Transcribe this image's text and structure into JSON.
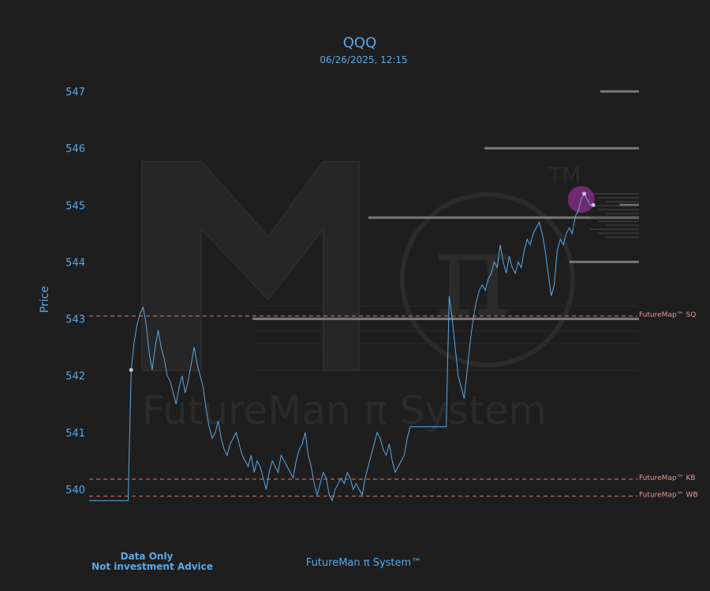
{
  "chart_data": {
    "type": "line",
    "title": "QQQ",
    "subtitle": "06/26/2025, 12:15",
    "ylabel": "Price",
    "xlabel": "",
    "ylim": [
      539.6,
      547.5
    ],
    "yticks": [
      540,
      541,
      542,
      543,
      544,
      545,
      546,
      547
    ],
    "grid": false,
    "legend": "none",
    "colors": {
      "background": "#1e1e1e",
      "price": "#5aa9e6",
      "levels": "#e07a6e",
      "bars": "#7a7a7a",
      "highlight": "#8e2f8e",
      "marker": "#c9c2e6"
    },
    "series": [
      {
        "values": [
          539.8,
          539.8,
          539.8,
          539.8,
          539.8,
          539.8,
          539.8,
          539.8,
          539.8,
          539.8,
          539.8,
          539.8,
          539.8,
          539.8,
          542.1,
          542.6,
          542.9,
          543.1,
          543.2,
          542.9,
          542.4,
          542.1,
          542.5,
          542.8,
          542.5,
          542.3,
          542.0,
          541.9,
          541.7,
          541.5,
          541.8,
          542.0,
          541.7,
          541.9,
          542.2,
          542.5,
          542.2,
          542.0,
          541.8,
          541.4,
          541.1,
          540.9,
          541.0,
          541.2,
          540.9,
          540.7,
          540.6,
          540.8,
          540.9,
          541.0,
          540.8,
          540.6,
          540.5,
          540.4,
          540.6,
          540.3,
          540.5,
          540.4,
          540.2,
          540.0,
          540.3,
          540.5,
          540.4,
          540.3,
          540.6,
          540.5,
          540.4,
          540.3,
          540.2,
          540.5,
          540.7,
          540.8,
          541.0,
          540.6,
          540.4,
          540.1,
          539.9,
          540.1,
          540.3,
          540.2,
          539.9,
          539.8,
          540.0,
          540.1,
          540.2,
          540.1,
          540.3,
          540.2,
          540.0,
          540.1,
          540.0,
          539.9,
          540.2,
          540.4,
          540.6,
          540.8,
          541.0,
          540.9,
          540.7,
          540.6,
          540.8,
          540.5,
          540.3,
          540.4,
          540.5,
          540.6,
          540.9,
          541.1,
          541.1,
          541.1,
          541.1,
          541.1,
          541.1,
          541.1,
          541.1,
          541.1,
          541.1,
          541.1,
          541.1,
          541.1,
          543.4,
          543.0,
          542.5,
          542.0,
          541.8,
          541.6,
          542.1,
          542.6,
          543.0,
          543.3,
          543.5,
          543.6,
          543.5,
          543.7,
          543.8,
          544.0,
          543.9,
          544.3,
          544.0,
          543.8,
          544.1,
          543.9,
          543.8,
          544.0,
          543.9,
          544.2,
          544.4,
          544.3,
          544.5,
          544.6,
          544.7,
          544.5,
          544.2,
          543.8,
          543.4,
          543.6,
          544.2,
          544.4,
          544.3,
          544.5,
          544.6,
          544.5,
          544.8,
          544.9,
          545.1,
          545.2,
          545.1,
          545.0,
          545.0
        ]
      }
    ],
    "levels": [
      {
        "name": "FutureMap™ SQ",
        "value": 543.05
      },
      {
        "name": "FutureMap™ KB",
        "value": 540.18
      },
      {
        "name": "FutureMap™ WB",
        "value": 539.88
      }
    ],
    "volume_profile": [
      {
        "price": 547.0,
        "weight": 0.1
      },
      {
        "price": 546.0,
        "weight": 0.4
      },
      {
        "price": 545.0,
        "weight": 0.05
      },
      {
        "price": 544.78,
        "weight": 0.7
      },
      {
        "price": 544.0,
        "weight": 0.18
      },
      {
        "price": 543.0,
        "weight": 1.0
      }
    ],
    "markers": [
      {
        "index": 14,
        "value": 542.1
      },
      {
        "index": 165,
        "value": 545.2
      },
      {
        "index": 168,
        "value": 545.0
      }
    ]
  },
  "watermark": {
    "text": "FutureMan π System",
    "tm": "TM"
  },
  "footer": {
    "center": "FutureMan π System™",
    "disclaimer_line1": "Data Only",
    "disclaimer_line2": "Not investment Advice"
  }
}
